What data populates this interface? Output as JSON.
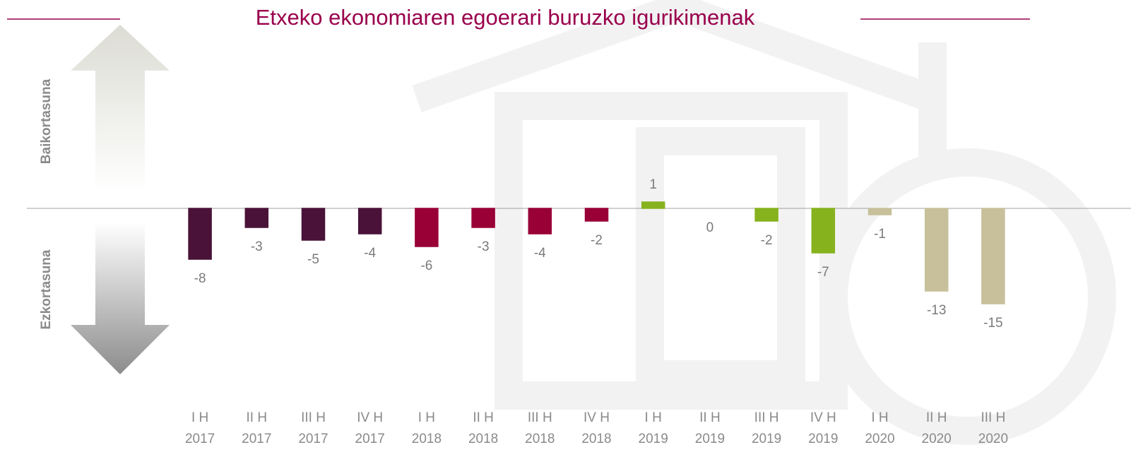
{
  "chart_data": {
    "type": "bar",
    "title": "Etxeko ekonomiaren egoerari buruzko igurikimenak",
    "optimism_label": "Baikortasuna",
    "pessimism_label": "Ezkortasuna",
    "categories": [
      "I H\n2017",
      "II H\n2017",
      "III H\n2017",
      "IV H\n2017",
      "I H\n2018",
      "II H\n2018",
      "III H\n2018",
      "IV H\n2018",
      "I H\n2019",
      "II H\n2019",
      "III H\n2019",
      "IV H\n2019",
      "I H\n2020",
      "II H\n2020",
      "III H\n2020"
    ],
    "values": [
      -8,
      -3,
      -5,
      -4,
      -6,
      -3,
      -4,
      -2,
      1,
      0,
      -2,
      -7,
      -1,
      -13,
      -15
    ],
    "colors": [
      "#4a1238",
      "#4a1238",
      "#4a1238",
      "#4a1238",
      "#990036",
      "#990036",
      "#990036",
      "#990036",
      "#86b21e",
      "#86b21e",
      "#86b21e",
      "#86b21e",
      "#c7c09b",
      "#c7c09b",
      "#c7c09b"
    ],
    "ylim": [
      -27,
      25
    ]
  }
}
